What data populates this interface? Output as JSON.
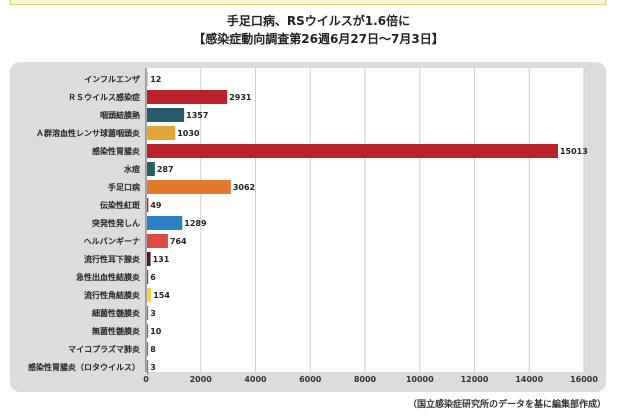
{
  "header": {
    "title": "手足口病、RSウイルスが1.6倍に",
    "subtitle": "【感染症動向調査第26週6月27日～7月3日】"
  },
  "source": "（国立感染症研究所のデータを基に編集部作成）",
  "chart_data": {
    "type": "bar",
    "orientation": "horizontal",
    "title": "",
    "xlabel": "",
    "ylabel": "",
    "xlim": [
      0,
      16000
    ],
    "ticks": [
      0,
      2000,
      4000,
      6000,
      8000,
      10000,
      12000,
      14000,
      16000
    ],
    "grid": true,
    "categories": [
      "インフルエンザ",
      "ＲＳウイルス感染症",
      "咽頭結膜熱",
      "Ａ群溶血性レンサ球菌咽頭炎",
      "感染性胃腸炎",
      "水痘",
      "手足口病",
      "伝染性紅斑",
      "突発性発しん",
      "ヘルパンギーナ",
      "流行性耳下腺炎",
      "急性出血性結膜炎",
      "流行性角結膜炎",
      "細菌性髄膜炎",
      "無菌性髄膜炎",
      "マイコプラズマ肺炎",
      "感染性胃腸炎（ロタウイルス）"
    ],
    "values": [
      12,
      2931,
      1357,
      1030,
      15013,
      287,
      3062,
      49,
      1289,
      764,
      131,
      6,
      154,
      3,
      10,
      8,
      3
    ],
    "colors": [
      "#f3d35a",
      "#b8232b",
      "#285c6b",
      "#e2a53a",
      "#b8232b",
      "#285c6b",
      "#e3782f",
      "#b8232b",
      "#2b80c2",
      "#dc4a43",
      "#4a1a2d",
      "#555555",
      "#f2d84a",
      "#777777",
      "#777777",
      "#777777",
      "#777777"
    ]
  }
}
